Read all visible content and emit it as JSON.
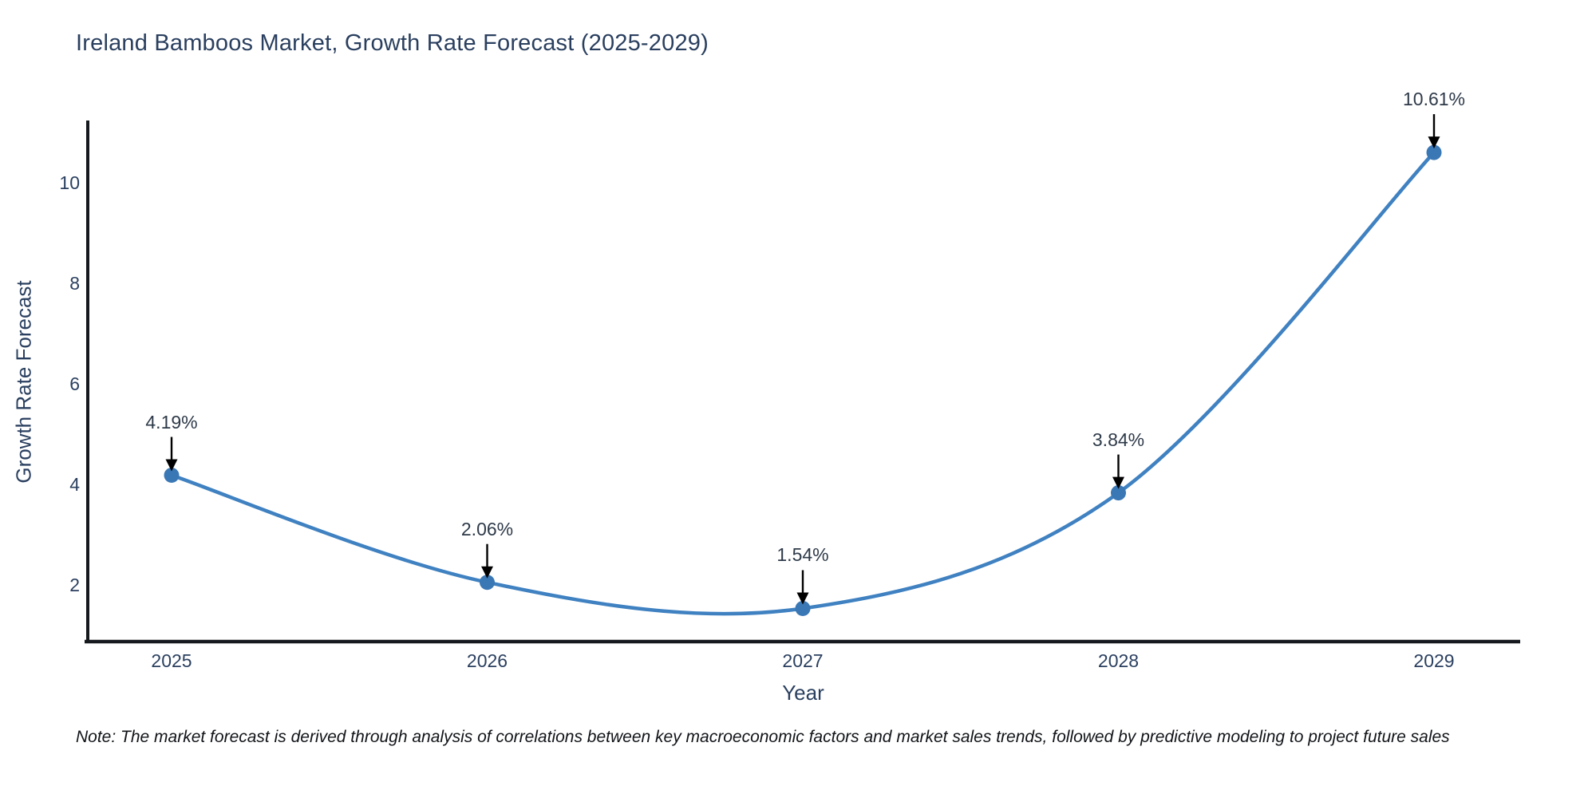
{
  "page": {
    "background": "#ffffff"
  },
  "chart_data": {
    "type": "line",
    "title": "Ireland Bamboos Market, Growth Rate Forecast (2025-2029)",
    "xlabel": "Year",
    "ylabel": "Growth Rate Forecast",
    "x": [
      2025,
      2026,
      2027,
      2028,
      2029
    ],
    "xtick_labels": [
      "2025",
      "2026",
      "2027",
      "2028",
      "2029"
    ],
    "series": [
      {
        "name": "Growth Rate Forecast",
        "values": [
          4.19,
          2.06,
          1.54,
          3.84,
          10.61
        ]
      }
    ],
    "point_labels": [
      "4.19%",
      "2.06%",
      "1.54%",
      "3.84%",
      "10.61%"
    ],
    "yticks": [
      2,
      4,
      6,
      8,
      10
    ],
    "ylim": [
      0.9,
      11.35
    ],
    "line_shape": "spline",
    "grid": false,
    "legend_position": "none",
    "colors": {
      "line": "#3f81c1",
      "marker": "#3a77b5",
      "axis": "#16191d",
      "text": "#2a3f5f",
      "annotation_text": "#2e3a49",
      "arrow": "#000000"
    },
    "note": "Note: The market forecast is derived through analysis of correlations between key macroeconomic factors and market sales trends, followed by predictive modeling to project future sales"
  }
}
